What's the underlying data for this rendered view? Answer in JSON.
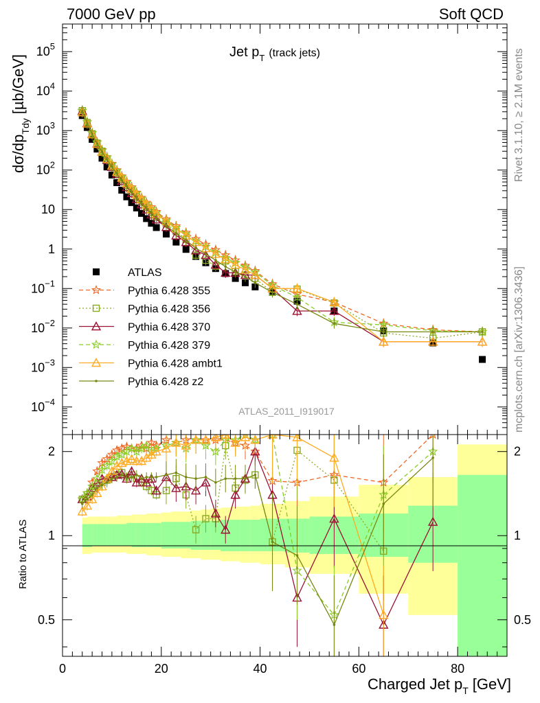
{
  "header": {
    "left": "7000 GeV pp",
    "right": "Soft QCD"
  },
  "side_text": {
    "rivet": "Rivet 3.1.10, ≥ 2.1M events",
    "mcplots": "mcplots.cern.ch [arXiv:1306.3436]"
  },
  "chart_data": [
    {
      "panel": "main",
      "type": "line",
      "title_main": "Jet p",
      "title_sub": "T",
      "title_note": "(track jets)",
      "ylabel_main": "dσ/dp",
      "ylabel_sub": "Tdy",
      "ylabel_unit": "[µb/GeV]",
      "analysis_label": "ATLAS_2011_I919017",
      "yscale": "log",
      "ylim": [
        2e-05,
        500000
      ],
      "xlim": [
        0,
        90
      ],
      "y_tick_labels": [
        {
          "v": 0.0001,
          "base": "10",
          "exp": "−4"
        },
        {
          "v": 0.001,
          "base": "10",
          "exp": "−3"
        },
        {
          "v": 0.01,
          "base": "10",
          "exp": "−2"
        },
        {
          "v": 0.1,
          "base": "10",
          "exp": "−1"
        },
        {
          "v": 1,
          "base": "1",
          "exp": ""
        },
        {
          "v": 10,
          "base": "10",
          "exp": ""
        },
        {
          "v": 100,
          "base": "10",
          "exp": "2"
        },
        {
          "v": 1000,
          "base": "10",
          "exp": "3"
        },
        {
          "v": 10000,
          "base": "10",
          "exp": "4"
        },
        {
          "v": 100000,
          "base": "10",
          "exp": "5"
        }
      ],
      "legend_position": "lower-left",
      "x": [
        4,
        5,
        6,
        7,
        8,
        9,
        10,
        11,
        12,
        13,
        14,
        15,
        16,
        17,
        18,
        19,
        21,
        23,
        25,
        27,
        29,
        31,
        33,
        35,
        37,
        39,
        42.5,
        47.5,
        55,
        65,
        75,
        85
      ],
      "series": [
        {
          "name": "ATLAS",
          "color": "#000000",
          "marker": "square",
          "style": "none",
          "values": [
            2400,
            1200,
            600,
            340,
            200,
            120,
            75,
            48,
            31,
            21,
            15,
            11,
            8,
            5.9,
            4.5,
            3.5,
            2.4,
            1.5,
            0.98,
            0.65,
            0.45,
            0.32,
            0.24,
            0.18,
            0.14,
            0.11,
            0.085,
            0.048,
            0.027,
            0.0085,
            0.0042,
            0.0016
          ]
        },
        {
          "name": "Pythia 6.428 355",
          "color": "#ee6622",
          "marker": "star",
          "style": "dash",
          "values": [
            3200,
            1650,
            870,
            510,
            320,
            215,
            145,
            100,
            70,
            51,
            37,
            27,
            20,
            15,
            11.5,
            8.8,
            5.7,
            3.8,
            2.6,
            1.8,
            1.3,
            0.95,
            0.7,
            0.52,
            0.38,
            0.28,
            0.13,
            0.072,
            0.045,
            0.013,
            0.009,
            0.008
          ]
        },
        {
          "name": "Pythia 6.428 356",
          "color": "#88aa22",
          "marker": "open-square",
          "style": "dot",
          "values": [
            3200,
            1600,
            830,
            480,
            300,
            190,
            125,
            85,
            58,
            41,
            29,
            21,
            15.5,
            11.5,
            8.5,
            6.5,
            4.3,
            2.8,
            1.75,
            0.7,
            0.52,
            0.37,
            0.5,
            0.27,
            0.22,
            0.18,
            0.08,
            0.097,
            0.043,
            0.0075,
            0.0055,
            0.008
          ]
        },
        {
          "name": "Pythia 6.428 370",
          "color": "#991133",
          "marker": "open-triangle",
          "style": "solid",
          "values": [
            3150,
            1550,
            820,
            470,
            290,
            180,
            120,
            80,
            53,
            37,
            26,
            18.5,
            13.5,
            10,
            7.5,
            5.6,
            3.6,
            2.2,
            1.5,
            0.92,
            0.7,
            0.4,
            0.25,
            0.25,
            0.22,
            0.22,
            0.1,
            0.027,
            0.027,
            0.0045,
            0.0045,
            0.0045
          ]
        },
        {
          "name": "Pythia 6.428 379",
          "color": "#88cc22",
          "marker": "star",
          "style": "dash",
          "values": [
            3200,
            1650,
            860,
            500,
            310,
            210,
            140,
            96,
            67,
            48,
            35,
            26,
            19,
            14.2,
            10.6,
            8.2,
            5.3,
            3.5,
            2.4,
            1.6,
            1.15,
            0.82,
            0.6,
            0.45,
            0.35,
            0.26,
            0.12,
            0.06,
            0.014,
            0.012,
            0.0085,
            0.008
          ]
        },
        {
          "name": "Pythia 6.428 ambt1",
          "color": "#ffaa22",
          "marker": "open-triangle",
          "style": "solid",
          "values": [
            2900,
            1500,
            800,
            460,
            290,
            190,
            130,
            90,
            64,
            46,
            33,
            24,
            18,
            13.5,
            10,
            7.7,
            5,
            3.3,
            2.2,
            1.5,
            1.05,
            0.75,
            0.55,
            0.4,
            0.3,
            0.22,
            0.1,
            0.1,
            0.045,
            0.0045,
            0.0045,
            0.0045
          ]
        },
        {
          "name": "Pythia 6.428 z2",
          "color": "#778811",
          "marker": "dot",
          "style": "solid",
          "values": [
            3100,
            1550,
            820,
            470,
            290,
            185,
            122,
            82,
            55,
            39,
            27.5,
            19.5,
            14.2,
            10.5,
            7.9,
            6,
            3.9,
            2.5,
            1.65,
            1.05,
            0.75,
            0.52,
            0.36,
            0.26,
            0.2,
            0.14,
            0.08,
            0.04,
            0.013,
            0.008,
            0.008,
            0.008
          ]
        }
      ]
    },
    {
      "panel": "ratio",
      "type": "line",
      "ylabel": "Ratio to ATLAS",
      "xlabel_main": "Charged Jet p",
      "xlabel_sub": "T",
      "xlabel_unit": "[GeV]",
      "yscale": "log",
      "ylim": [
        0.37,
        2.3
      ],
      "xlim": [
        0,
        90
      ],
      "x_tick_labels": [
        "0",
        "20",
        "40",
        "60",
        "80"
      ],
      "y_tick_labels": [
        "0.5",
        "1",
        "2"
      ],
      "band_edges": [
        4,
        5,
        6,
        7,
        8,
        9,
        10,
        11,
        12,
        13,
        14,
        15,
        16,
        17,
        18,
        19,
        20,
        22,
        24,
        26,
        28,
        30,
        32,
        34,
        36,
        38,
        40,
        45,
        50,
        60,
        70,
        80,
        90
      ],
      "band_inner": [
        [
          0.91,
          1.1
        ],
        [
          0.91,
          1.1
        ],
        [
          0.92,
          1.1
        ],
        [
          0.92,
          1.1
        ],
        [
          0.92,
          1.1
        ],
        [
          0.92,
          1.1
        ],
        [
          0.92,
          1.1
        ],
        [
          0.92,
          1.1
        ],
        [
          0.92,
          1.1
        ],
        [
          0.92,
          1.11
        ],
        [
          0.91,
          1.11
        ],
        [
          0.91,
          1.11
        ],
        [
          0.91,
          1.11
        ],
        [
          0.91,
          1.11
        ],
        [
          0.91,
          1.11
        ],
        [
          0.91,
          1.11
        ],
        [
          0.9,
          1.12
        ],
        [
          0.9,
          1.12
        ],
        [
          0.9,
          1.12
        ],
        [
          0.89,
          1.13
        ],
        [
          0.89,
          1.13
        ],
        [
          0.89,
          1.13
        ],
        [
          0.88,
          1.14
        ],
        [
          0.88,
          1.14
        ],
        [
          0.88,
          1.14
        ],
        [
          0.88,
          1.14
        ],
        [
          0.88,
          1.15
        ],
        [
          0.87,
          1.15
        ],
        [
          0.86,
          1.17
        ],
        [
          0.84,
          1.2
        ],
        [
          0.8,
          1.28
        ],
        [
          0.35,
          1.65
        ]
      ],
      "band_outer": [
        [
          0.86,
          1.16
        ],
        [
          0.86,
          1.17
        ],
        [
          0.87,
          1.17
        ],
        [
          0.87,
          1.17
        ],
        [
          0.87,
          1.17
        ],
        [
          0.87,
          1.17
        ],
        [
          0.87,
          1.17
        ],
        [
          0.87,
          1.18
        ],
        [
          0.87,
          1.18
        ],
        [
          0.86,
          1.18
        ],
        [
          0.86,
          1.19
        ],
        [
          0.86,
          1.19
        ],
        [
          0.86,
          1.19
        ],
        [
          0.85,
          1.2
        ],
        [
          0.85,
          1.2
        ],
        [
          0.85,
          1.2
        ],
        [
          0.84,
          1.21
        ],
        [
          0.84,
          1.22
        ],
        [
          0.83,
          1.22
        ],
        [
          0.83,
          1.23
        ],
        [
          0.82,
          1.24
        ],
        [
          0.82,
          1.25
        ],
        [
          0.81,
          1.26
        ],
        [
          0.81,
          1.27
        ],
        [
          0.8,
          1.27
        ],
        [
          0.8,
          1.28
        ],
        [
          0.79,
          1.3
        ],
        [
          0.77,
          1.33
        ],
        [
          0.73,
          1.38
        ],
        [
          0.62,
          1.52
        ],
        [
          0.52,
          1.62
        ],
        [
          0.35,
          2.12
        ]
      ],
      "x": [
        4,
        5,
        6,
        7,
        8,
        9,
        10,
        11,
        12,
        13,
        14,
        15,
        16,
        17,
        18,
        19,
        21,
        23,
        25,
        27,
        29,
        31,
        33,
        35,
        37,
        39,
        42.5,
        47.5,
        55,
        65,
        75,
        85
      ],
      "series": [
        {
          "name": "Pythia 6.428 355",
          "values": [
            1.35,
            1.42,
            1.55,
            1.7,
            1.82,
            1.88,
            1.95,
            2.02,
            2.05,
            2.08,
            2.05,
            2.05,
            2.1,
            2.05,
            2.15,
            2.1,
            2.2,
            2.15,
            2.2,
            2.2,
            2.2,
            2.2,
            2.2,
            2.15,
            2.1,
            2.0,
            1.57,
            1.55,
            1.65,
            1.55,
            2.3,
            null
          ]
        },
        {
          "name": "Pythia 6.428 356",
          "values": [
            1.35,
            1.4,
            1.45,
            1.5,
            1.55,
            1.58,
            1.62,
            1.65,
            1.68,
            1.62,
            1.65,
            1.6,
            1.55,
            1.5,
            1.45,
            1.4,
            1.45,
            1.6,
            1.4,
            1.05,
            1.15,
            1.15,
            2.1,
            1.48,
            1.58,
            1.65,
            0.95,
            2.02,
            1.58,
            0.88,
            null,
            null
          ]
        },
        {
          "name": "Pythia 6.428 370",
          "values": [
            1.35,
            1.38,
            1.48,
            1.55,
            1.6,
            1.6,
            1.62,
            1.65,
            1.66,
            1.6,
            1.7,
            1.55,
            1.6,
            1.55,
            1.6,
            1.45,
            1.62,
            1.48,
            1.5,
            1.45,
            1.55,
            1.2,
            1.05,
            1.4,
            1.6,
            2.0,
            1.4,
            0.6,
            1.15,
            0.48,
            1.12,
            null
          ]
        },
        {
          "name": "Pythia 6.428 379",
          "values": [
            1.35,
            1.42,
            1.5,
            1.6,
            1.72,
            1.78,
            1.85,
            1.92,
            1.95,
            2.0,
            2.05,
            2.0,
            2.05,
            2.1,
            2.0,
            2.05,
            2.1,
            2.15,
            2.05,
            2.2,
            2.1,
            2.0,
            2.2,
            2.2,
            2.3,
            2.2,
            2.3,
            0.75,
            0.52,
            1.4,
            2.0,
            null
          ]
        },
        {
          "name": "Pythia 6.428 ambt1",
          "values": [
            1.22,
            1.28,
            1.35,
            1.42,
            1.5,
            1.6,
            1.7,
            1.78,
            1.82,
            1.85,
            1.88,
            1.85,
            1.85,
            1.9,
            1.95,
            2.0,
            2.05,
            2.15,
            2.1,
            2.2,
            2.2,
            2.25,
            2.3,
            2.15,
            2.25,
            2.2,
            2.3,
            2.25,
            1.9,
            0.52,
            null,
            null
          ]
        },
        {
          "name": "Pythia 6.428 z2",
          "values": [
            1.3,
            1.35,
            1.4,
            1.48,
            1.52,
            1.55,
            1.6,
            1.62,
            1.65,
            1.6,
            1.62,
            1.65,
            1.6,
            1.62,
            1.62,
            1.62,
            1.65,
            1.68,
            1.62,
            1.6,
            1.62,
            1.55,
            1.6,
            1.6,
            1.6,
            1.65,
            0.95,
            0.85,
            0.48,
            1.3,
            1.9,
            null
          ]
        }
      ]
    }
  ]
}
